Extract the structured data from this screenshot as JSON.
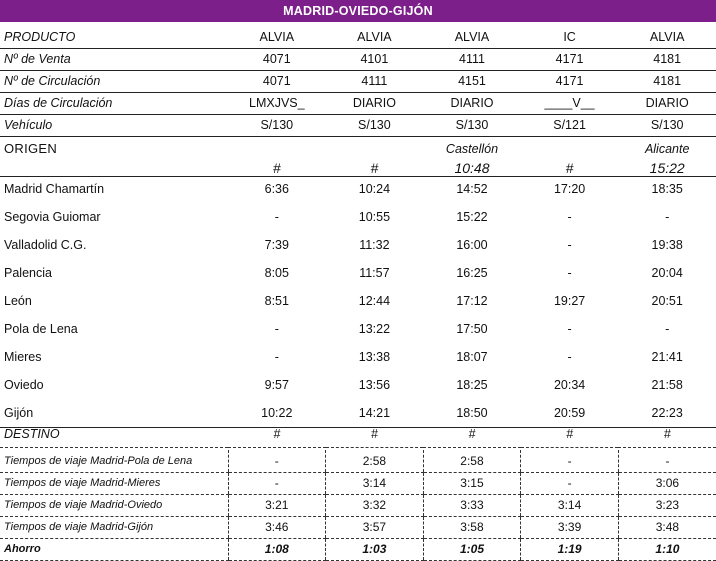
{
  "title": "MADRID-OVIEDO-GIJÓN",
  "header_rows": [
    {
      "label": "PRODUCTO",
      "values": [
        "ALVIA",
        "ALVIA",
        "ALVIA",
        "IC",
        "ALVIA"
      ]
    },
    {
      "label": "Nº de Venta",
      "values": [
        "4071",
        "4101",
        "4111",
        "4171",
        "4181"
      ]
    },
    {
      "label": "Nº de Circulación",
      "values": [
        "4071",
        "4111",
        "4151",
        "4171",
        "4181"
      ]
    },
    {
      "label": "Días de Circulación",
      "values": [
        "LMXJVS_",
        "DIARIO",
        "DIARIO",
        "____V__",
        "DIARIO"
      ]
    },
    {
      "label": "Vehículo",
      "values": [
        "S/130",
        "S/130",
        "S/130",
        "S/121",
        "S/130"
      ]
    }
  ],
  "origin": {
    "label": "ORIGEN",
    "names": [
      "",
      "",
      "Castellón",
      "",
      "Alicante"
    ],
    "times": [
      "#",
      "#",
      "10:48",
      "#",
      "15:22"
    ]
  },
  "stations": [
    {
      "name": "Madrid Chamartín",
      "times": [
        "6:36",
        "10:24",
        "14:52",
        "17:20",
        "18:35"
      ]
    },
    {
      "name": "Segovia Guiomar",
      "times": [
        "-",
        "10:55",
        "15:22",
        "-",
        "-"
      ]
    },
    {
      "name": "Valladolid C.G.",
      "times": [
        "7:39",
        "11:32",
        "16:00",
        "-",
        "19:38"
      ]
    },
    {
      "name": "Palencia",
      "times": [
        "8:05",
        "11:57",
        "16:25",
        "-",
        "20:04"
      ]
    },
    {
      "name": "León",
      "times": [
        "8:51",
        "12:44",
        "17:12",
        "19:27",
        "20:51"
      ]
    },
    {
      "name": "Pola de Lena",
      "times": [
        "-",
        "13:22",
        "17:50",
        "-",
        "-"
      ]
    },
    {
      "name": "Mieres",
      "times": [
        "-",
        "13:38",
        "18:07",
        "-",
        "21:41"
      ]
    },
    {
      "name": "Oviedo",
      "times": [
        "9:57",
        "13:56",
        "18:25",
        "20:34",
        "21:58"
      ]
    },
    {
      "name": "Gijón",
      "times": [
        "10:22",
        "14:21",
        "18:50",
        "20:59",
        "22:23"
      ]
    }
  ],
  "destino": {
    "label": "DESTINO",
    "values": [
      "#",
      "#",
      "#",
      "#",
      "#"
    ]
  },
  "travel_times": [
    {
      "label": "Tiempos de viaje Madrid-Pola de Lena",
      "values": [
        "-",
        "2:58",
        "2:58",
        "-",
        "-"
      ]
    },
    {
      "label": "Tiempos de viaje Madrid-Mieres",
      "values": [
        "-",
        "3:14",
        "3:15",
        "-",
        "3:06"
      ]
    },
    {
      "label": "Tiempos de viaje Madrid-Oviedo",
      "values": [
        "3:21",
        "3:32",
        "3:33",
        "3:14",
        "3:23"
      ]
    },
    {
      "label": "Tiempos de viaje Madrid-Gijón",
      "values": [
        "3:46",
        "3:57",
        "3:58",
        "3:39",
        "3:48"
      ]
    }
  ],
  "ahorro": {
    "label": "Ahorro",
    "values": [
      "1:08",
      "1:03",
      "1:05",
      "1:19",
      "1:10"
    ]
  },
  "colors": {
    "title_bar": "#7d1f8a"
  }
}
